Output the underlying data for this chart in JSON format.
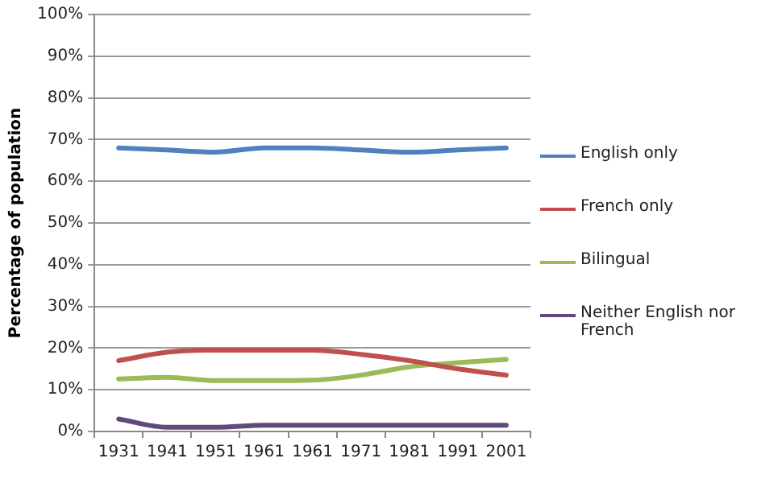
{
  "chart_data": {
    "type": "line",
    "ylabel": "Percentage of population",
    "categories": [
      "1931",
      "1941",
      "1951",
      "1961",
      "1961",
      "1971",
      "1981",
      "1991",
      "2001"
    ],
    "series": [
      {
        "name": "English only",
        "color": "#4f81bd",
        "values": [
          68,
          67.5,
          67,
          68,
          68,
          67.5,
          67,
          67.5,
          68
        ]
      },
      {
        "name": "French only",
        "color": "#c0504d",
        "values": [
          17,
          19,
          19.5,
          19.5,
          19.5,
          18.5,
          17,
          15,
          13.5
        ]
      },
      {
        "name": "Bilingual",
        "color": "#9bbb59",
        "values": [
          12.6,
          13,
          12.2,
          12.2,
          12.3,
          13.5,
          15.5,
          16.5,
          17.3
        ]
      },
      {
        "name": "Neither English nor French",
        "color": "#604a7b",
        "values": [
          3,
          1,
          1,
          1.5,
          1.5,
          1.5,
          1.5,
          1.5,
          1.5
        ]
      }
    ],
    "ylim": [
      0,
      100
    ],
    "yticks": [
      {
        "value": 0,
        "label": "0%"
      },
      {
        "value": 10,
        "label": "10%"
      },
      {
        "value": 20,
        "label": "20%"
      },
      {
        "value": 30,
        "label": "30%"
      },
      {
        "value": 40,
        "label": "40%"
      },
      {
        "value": 50,
        "label": "50%"
      },
      {
        "value": 60,
        "label": "60%"
      },
      {
        "value": 70,
        "label": "70%"
      },
      {
        "value": 80,
        "label": "80%"
      },
      {
        "value": 90,
        "label": "90%"
      },
      {
        "value": 100,
        "label": "100%"
      }
    ],
    "grid": "y",
    "legend": "right",
    "marker": "none",
    "line_style": "solid"
  }
}
